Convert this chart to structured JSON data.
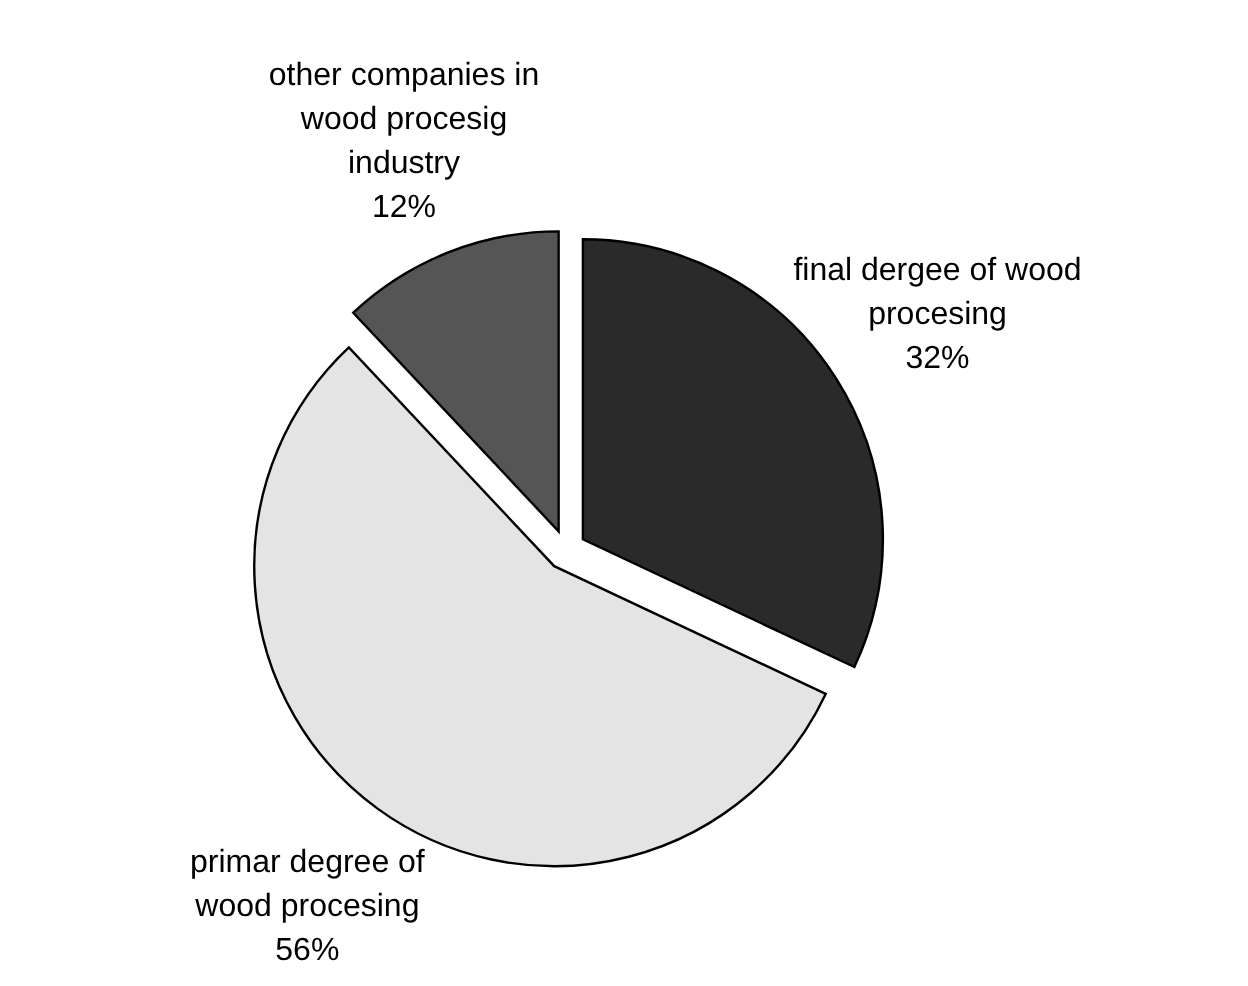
{
  "chart_data": {
    "type": "pie",
    "categories": [
      "final dergee of wood procesing",
      "primar degree of wood procesing",
      "other companies in wood procesig industry"
    ],
    "values": [
      32,
      56,
      12
    ],
    "colors": [
      "#2a2a2a",
      "#e4e4e4",
      "#555555"
    ],
    "value_labels": [
      "32%",
      "56%",
      "12%"
    ]
  }
}
